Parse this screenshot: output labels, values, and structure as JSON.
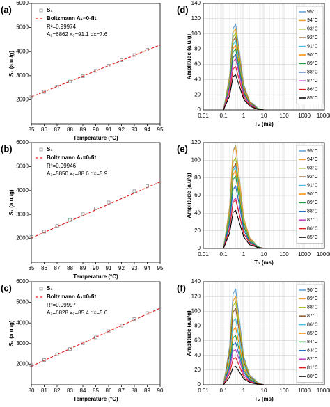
{
  "chart_data": [
    {
      "type": "scatter",
      "panel_label": "(a)",
      "xlabel": "Temperature (°C)",
      "ylabel": "S₁ (a.u./g)",
      "x": [
        85,
        86,
        87,
        88,
        89,
        90,
        91,
        92,
        93,
        94
      ],
      "series": [
        {
          "name": "S₁",
          "color": "#808080",
          "values": [
            2130,
            2330,
            2540,
            2760,
            2980,
            3200,
            3420,
            3640,
            3860,
            4080
          ]
        }
      ],
      "fit": {
        "name": "Boltzmann A₁=0-fit",
        "color": "#e02020",
        "x": [
          85,
          95
        ],
        "values": [
          2120,
          4280
        ]
      },
      "annotations": [
        "R²=0.99974",
        "A₂=6862 x₀=91.1 dx=7.6"
      ],
      "xlim": [
        85,
        95
      ],
      "xticks": [
        85,
        86,
        87,
        88,
        89,
        90,
        91,
        92,
        93,
        94,
        95
      ],
      "ylim": [
        1000,
        6000
      ],
      "yticks": [
        2000,
        3000,
        4000,
        5000,
        6000
      ]
    },
    {
      "type": "scatter",
      "panel_label": "(b)",
      "xlabel": "Temperature (°C)",
      "ylabel": "S₁ (a.u./g)",
      "x": [
        85,
        86,
        87,
        88,
        89,
        90,
        91,
        92,
        93,
        94
      ],
      "series": [
        {
          "name": "S₁",
          "color": "#808080",
          "values": [
            2060,
            2280,
            2520,
            2770,
            3010,
            3250,
            3500,
            3740,
            3970,
            4190
          ]
        }
      ],
      "fit": {
        "name": "Boltzmann A₁=0-fit",
        "color": "#e02020",
        "x": [
          85,
          95
        ],
        "values": [
          2020,
          4360
        ]
      },
      "annotations": [
        "R²=0.99946",
        "A₂=5850 x₀=88.6 dx=5.9"
      ],
      "xlim": [
        85,
        95
      ],
      "xticks": [
        85,
        86,
        87,
        88,
        89,
        90,
        91,
        92,
        93,
        94,
        95
      ],
      "ylim": [
        1000,
        6000
      ],
      "yticks": [
        2000,
        3000,
        4000,
        5000,
        6000
      ]
    },
    {
      "type": "scatter",
      "panel_label": "(c)",
      "xlabel": "Temperature (°C)",
      "ylabel": "S₁ (a.u./g)",
      "x": [
        80,
        81,
        82,
        83,
        84,
        85,
        86,
        87,
        88,
        89
      ],
      "series": [
        {
          "name": "S₁",
          "color": "#808080",
          "values": [
            1950,
            2200,
            2480,
            2730,
            3020,
            3300,
            3600,
            3870,
            4200,
            4480
          ]
        }
      ],
      "fit": {
        "name": "Boltzmann A₁=0-fit",
        "color": "#e02020",
        "x": [
          80,
          90
        ],
        "values": [
          1900,
          4720
        ]
      },
      "annotations": [
        "R²=0.99997",
        "A₂=6828 x₀=85.4 dx=5.6"
      ],
      "xlim": [
        80,
        90
      ],
      "xticks": [
        80,
        81,
        82,
        83,
        84,
        85,
        86,
        87,
        88,
        89,
        90
      ],
      "ylim": [
        1000,
        6000
      ],
      "yticks": [
        2000,
        3000,
        4000,
        5000,
        6000
      ]
    },
    {
      "type": "line",
      "panel_label": "(d)",
      "xlabel": "T₂ (ms)",
      "ylabel": "Amplitude (a.u/g)",
      "xscale": "log",
      "grid": true,
      "legend": "upper right",
      "x": [
        0.1,
        0.2,
        0.3,
        0.4,
        0.6,
        1,
        2,
        3,
        5,
        10
      ],
      "series": [
        {
          "name": "95°C",
          "color": "#5b9bd5",
          "values": [
            0,
            45,
            107,
            113,
            79,
            34,
            11,
            8,
            2,
            0
          ]
        },
        {
          "name": "94°C",
          "color": "#f0a030",
          "values": [
            0,
            43,
            102,
            107,
            75,
            32,
            11,
            7,
            2,
            0
          ]
        },
        {
          "name": "93°C",
          "color": "#a0c020",
          "values": [
            0,
            40,
            96,
            101,
            71,
            30,
            10,
            7,
            2,
            0
          ]
        },
        {
          "name": "92°C",
          "color": "#8b5a2b",
          "values": [
            0,
            38,
            91,
            96,
            67,
            29,
            10,
            7,
            2,
            0
          ]
        },
        {
          "name": "91°C",
          "color": "#40c0e0",
          "values": [
            0,
            36,
            86,
            91,
            64,
            27,
            9,
            6,
            2,
            0
          ]
        },
        {
          "name": "90°C",
          "color": "#ff8c00",
          "values": [
            0,
            34,
            81,
            85,
            60,
            26,
            9,
            6,
            2,
            0
          ]
        },
        {
          "name": "89°C",
          "color": "#20a040",
          "values": [
            0,
            32,
            76,
            80,
            56,
            24,
            8,
            6,
            2,
            0
          ]
        },
        {
          "name": "88°C",
          "color": "#2060c0",
          "values": [
            0,
            29,
            69,
            73,
            51,
            22,
            7,
            5,
            1,
            0
          ]
        },
        {
          "name": "87°C",
          "color": "#c040c0",
          "values": [
            0,
            27,
            64,
            67,
            47,
            20,
            7,
            5,
            1,
            0
          ]
        },
        {
          "name": "86°C",
          "color": "#e02020",
          "values": [
            0,
            23,
            54,
            57,
            40,
            17,
            6,
            4,
            1,
            0
          ]
        },
        {
          "name": "85°C",
          "color": "#000000",
          "values": [
            0,
            18,
            44,
            46,
            32,
            14,
            5,
            3,
            1,
            0
          ]
        }
      ],
      "xlim": [
        0.01,
        10000
      ],
      "xticks": [
        0.01,
        0.1,
        1,
        10,
        100,
        1000,
        10000
      ],
      "ylim": [
        0,
        140
      ],
      "yticks": [
        0,
        20,
        40,
        60,
        80,
        100,
        120,
        140
      ]
    },
    {
      "type": "line",
      "panel_label": "(e)",
      "xlabel": "T₂ (ms)",
      "ylabel": "Amplitude (a.u/g)",
      "xscale": "log",
      "grid": true,
      "legend": "upper right",
      "x": [
        0.1,
        0.2,
        0.3,
        0.4,
        0.6,
        1,
        2,
        3,
        5,
        10
      ],
      "series": [
        {
          "name": "95°C",
          "color": "#5b9bd5",
          "values": [
            0,
            47,
            111,
            117,
            82,
            35,
            12,
            8,
            2,
            0
          ]
        },
        {
          "name": "94°C",
          "color": "#f0a030",
          "values": [
            0,
            46,
            110,
            116,
            81,
            35,
            12,
            8,
            2,
            0
          ]
        },
        {
          "name": "93°C",
          "color": "#a0c020",
          "values": [
            0,
            41,
            98,
            103,
            72,
            31,
            10,
            7,
            2,
            0
          ]
        },
        {
          "name": "92°C",
          "color": "#8b5a2b",
          "values": [
            0,
            38,
            91,
            96,
            67,
            29,
            10,
            7,
            2,
            0
          ]
        },
        {
          "name": "91°C",
          "color": "#40c0e0",
          "values": [
            0,
            37,
            88,
            93,
            65,
            28,
            9,
            7,
            2,
            0
          ]
        },
        {
          "name": "90°C",
          "color": "#ff8c00",
          "values": [
            0,
            35,
            84,
            88,
            62,
            26,
            9,
            6,
            2,
            0
          ]
        },
        {
          "name": "89°C",
          "color": "#20a040",
          "values": [
            0,
            33,
            78,
            82,
            57,
            25,
            8,
            6,
            2,
            0
          ]
        },
        {
          "name": "88°C",
          "color": "#2060c0",
          "values": [
            0,
            28,
            67,
            71,
            50,
            21,
            7,
            5,
            1,
            0
          ]
        },
        {
          "name": "87°C",
          "color": "#c040c0",
          "values": [
            0,
            23,
            54,
            57,
            40,
            17,
            6,
            4,
            1,
            0
          ]
        },
        {
          "name": "86°C",
          "color": "#e02020",
          "values": [
            0,
            22,
            52,
            55,
            39,
            17,
            6,
            4,
            1,
            0
          ]
        },
        {
          "name": "85°C",
          "color": "#000000",
          "values": [
            0,
            17,
            41,
            43,
            30,
            13,
            4,
            3,
            1,
            0
          ]
        }
      ],
      "xlim": [
        0.01,
        10000
      ],
      "xticks": [
        0.01,
        0.1,
        1,
        10,
        100,
        1000,
        10000
      ],
      "ylim": [
        0,
        120
      ],
      "yticks": [
        0,
        20,
        40,
        60,
        80,
        100,
        120
      ]
    },
    {
      "type": "line",
      "panel_label": "(f)",
      "xlabel": "T₂ (ms)",
      "ylabel": "Amplitude (a.u/g)",
      "xscale": "log",
      "grid": true,
      "legend": "upper right",
      "x": [
        0.1,
        0.2,
        0.3,
        0.4,
        0.6,
        1,
        2,
        3,
        5,
        10
      ],
      "series": [
        {
          "name": "90°C",
          "color": "#5b9bd5",
          "values": [
            0,
            52,
            124,
            130,
            91,
            39,
            13,
            9,
            3,
            0
          ]
        },
        {
          "name": "89°C",
          "color": "#f0a030",
          "values": [
            0,
            48,
            114,
            120,
            84,
            36,
            12,
            8,
            2,
            0
          ]
        },
        {
          "name": "88°C",
          "color": "#a0c020",
          "values": [
            0,
            45,
            107,
            113,
            79,
            34,
            11,
            8,
            2,
            0
          ]
        },
        {
          "name": "87°C",
          "color": "#8b5a2b",
          "values": [
            0,
            42,
            99,
            104,
            73,
            31,
            10,
            7,
            2,
            0
          ]
        },
        {
          "name": "86°C",
          "color": "#40c0e0",
          "values": [
            0,
            36,
            86,
            90,
            63,
            27,
            9,
            6,
            2,
            0
          ]
        },
        {
          "name": "85°C",
          "color": "#ff8c00",
          "values": [
            0,
            31,
            74,
            78,
            55,
            23,
            8,
            5,
            2,
            0
          ]
        },
        {
          "name": "84°C",
          "color": "#20a040",
          "values": [
            0,
            27,
            64,
            67,
            47,
            20,
            7,
            5,
            1,
            0
          ]
        },
        {
          "name": "83°C",
          "color": "#2060c0",
          "values": [
            0,
            23,
            54,
            57,
            40,
            17,
            6,
            4,
            1,
            0
          ]
        },
        {
          "name": "82°C",
          "color": "#c040c0",
          "values": [
            0,
            19,
            46,
            48,
            34,
            14,
            5,
            3,
            1,
            0
          ]
        },
        {
          "name": "81°C",
          "color": "#e02020",
          "values": [
            0,
            15,
            35,
            37,
            26,
            11,
            4,
            3,
            1,
            0
          ]
        },
        {
          "name": "80°C",
          "color": "#000000",
          "values": [
            0,
            10,
            24,
            25,
            18,
            8,
            3,
            2,
            1,
            0
          ]
        }
      ],
      "xlim": [
        0.01,
        10000
      ],
      "xticks": [
        0.01,
        0.1,
        1,
        10,
        100,
        1000,
        10000
      ],
      "ylim": [
        0,
        140
      ],
      "yticks": [
        0,
        20,
        40,
        60,
        80,
        100,
        120,
        140
      ]
    }
  ]
}
